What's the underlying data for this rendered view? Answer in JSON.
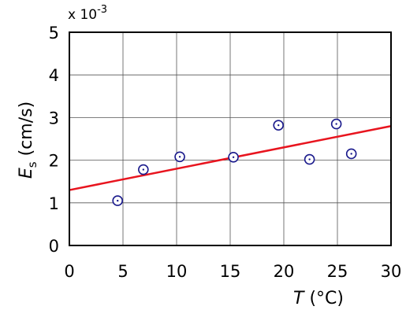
{
  "chart_data": {
    "type": "scatter",
    "title": "",
    "xlabel_var": "T",
    "xlabel_unit": " (°C)",
    "ylabel_var": "E",
    "ylabel_sub": "s",
    "ylabel_unit": " (cm/s)",
    "y_multiplier_base": "x 10",
    "y_multiplier_exp": "-3",
    "xlim": [
      0,
      30
    ],
    "ylim": [
      0,
      5
    ],
    "x_ticks": [
      0,
      5,
      10,
      15,
      20,
      25,
      30
    ],
    "y_ticks": [
      0,
      1,
      2,
      3,
      4,
      5
    ],
    "grid": true,
    "series": [
      {
        "type": "scatter",
        "marker": "circle-dot",
        "color": "#1a1a8c",
        "x": [
          4.5,
          6.9,
          10.3,
          15.3,
          19.5,
          22.4,
          24.9,
          26.3
        ],
        "y": [
          1.05,
          1.78,
          2.08,
          2.07,
          2.82,
          2.02,
          2.85,
          2.15
        ]
      },
      {
        "type": "line",
        "color": "#e8141e",
        "x": [
          0,
          30
        ],
        "y": [
          1.3,
          2.8
        ]
      }
    ]
  }
}
